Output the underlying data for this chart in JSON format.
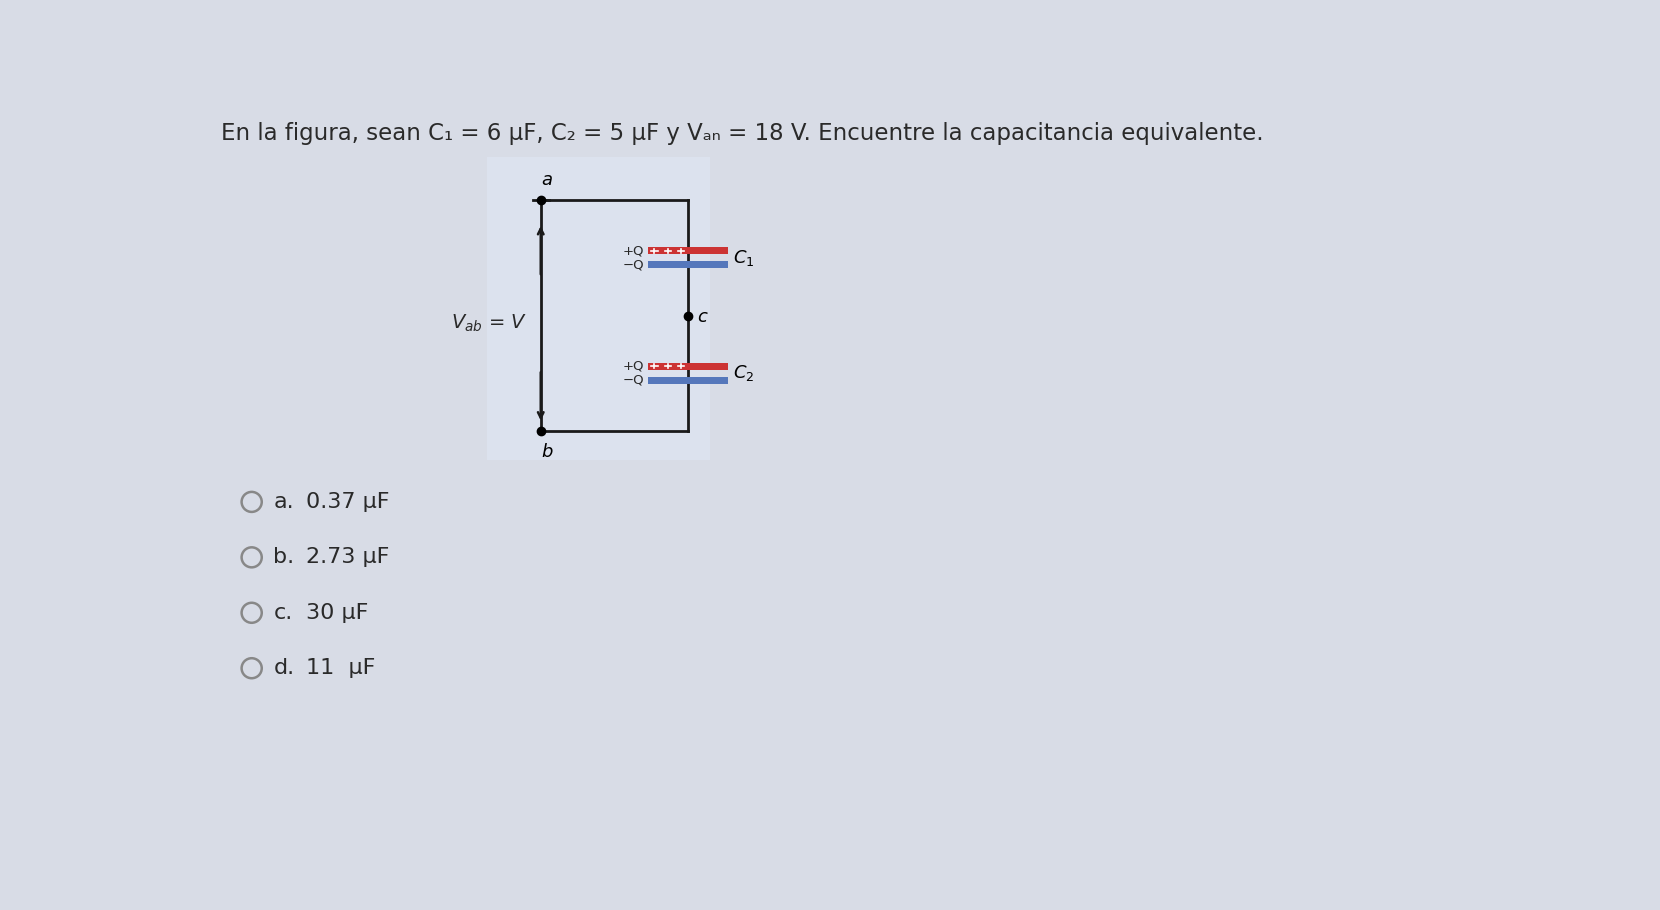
{
  "title": "En la figura, sean C₁ = 6 μF, C₂ = 5 μF y Vₐₙ = 18 V. Encuentre la capacitancia equivalente.",
  "background_color": "#d8dce6",
  "circuit_bg": "#dde2ec",
  "choices": [
    {
      "label": "a.",
      "text": "0.37 μF"
    },
    {
      "label": "b.",
      "text": "2.73 μF"
    },
    {
      "label": "c.",
      "text": "30 μF"
    },
    {
      "label": "d.",
      "text": "11  μF"
    }
  ],
  "cap_plus_color": "#cc3333",
  "cap_minus_color": "#5577bb",
  "wire_color": "#1a1a1a",
  "text_color": "#2a2a2a"
}
